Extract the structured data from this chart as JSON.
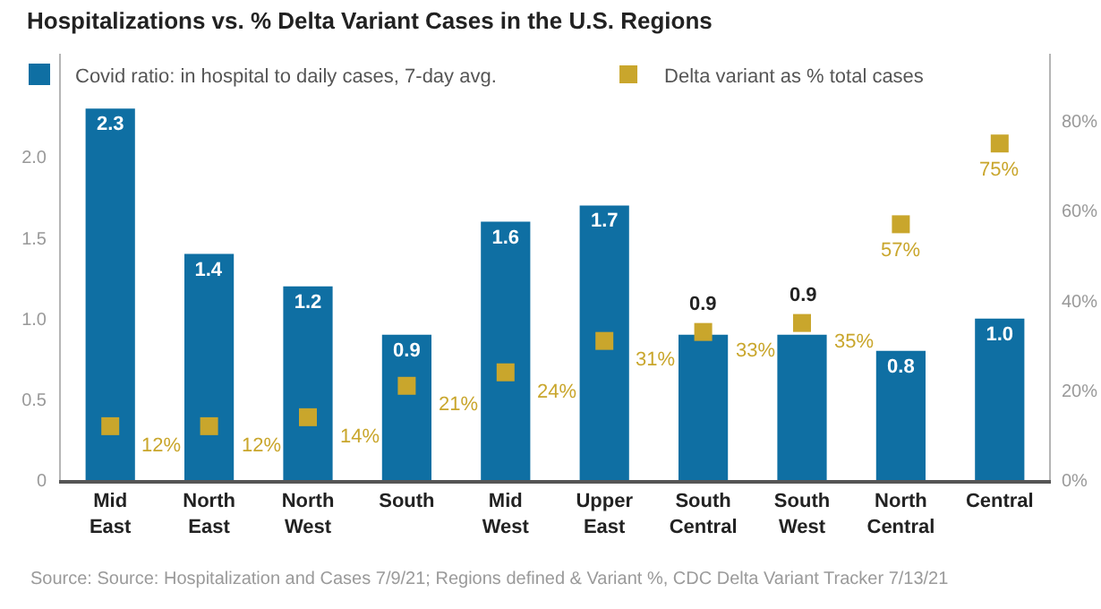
{
  "chart_data": {
    "type": "bar",
    "title": "Hospitalizations vs. % Delta Variant Cases in the U.S. Regions",
    "categories": [
      "Mid East",
      "North East",
      "North West",
      "South",
      "Mid West",
      "Upper East",
      "South Central",
      "South West",
      "North Central",
      "Central"
    ],
    "series": [
      {
        "name": "Covid ratio: in hospital to daily cases, 7-day avg.",
        "color": "#0f6fa3",
        "values": [
          2.3,
          1.4,
          1.2,
          0.9,
          1.6,
          1.7,
          0.9,
          0.9,
          0.8,
          1.0
        ],
        "value_labels": [
          "2.3",
          "1.4",
          "1.2",
          "0.9",
          "1.6",
          "1.7",
          "0.9",
          "0.9",
          "0.8",
          "1.0"
        ]
      },
      {
        "name": "Delta variant as % total cases",
        "type": "scatter",
        "marker": "square",
        "axis": "y2",
        "color": "#c9a62c",
        "values": [
          12,
          12,
          14,
          21,
          24,
          31,
          33,
          35,
          57,
          75
        ],
        "value_labels": [
          "12%",
          "12%",
          "14%",
          "21%",
          "24%",
          "31%",
          "33%",
          "35%",
          "57%",
          "75%"
        ]
      }
    ],
    "ylim": [
      0,
      2.64
    ],
    "yticks": [
      0,
      0.5,
      {
        "value": 1,
        "label": "1.0"
      },
      1.5,
      {
        "value": 2,
        "label": "2.0"
      }
    ],
    "y2lim": [
      0,
      95
    ],
    "y2ticks": [
      {
        "value": 0,
        "label": "0%"
      },
      {
        "value": 20,
        "label": "20%"
      },
      {
        "value": 40,
        "label": "40%"
      },
      {
        "value": 60,
        "label": "60%"
      },
      {
        "value": 80,
        "label": "80%"
      }
    ],
    "legend": "top",
    "annotations": [
      "Source: Source: Hospitalization and Cases 7/9/21; Regions defined & Variant %, CDC Delta Variant Tracker 7/13/21"
    ]
  }
}
